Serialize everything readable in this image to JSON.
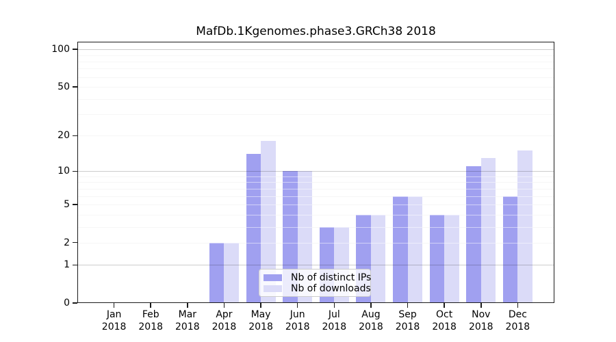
{
  "chart_data": {
    "type": "bar",
    "title": "MafDb.1Kgenomes.phase3.GRCh38 2018",
    "categories": [
      "Jan",
      "Feb",
      "Mar",
      "Apr",
      "May",
      "Jun",
      "Jul",
      "Aug",
      "Sep",
      "Oct",
      "Nov",
      "Dec"
    ],
    "year_label": "2018",
    "series": [
      {
        "key": "distinct-ips",
        "name": "Nb of distinct IPs",
        "color": "#a0a0f0",
        "values": [
          0,
          0,
          0,
          2,
          14,
          10,
          3,
          4,
          6,
          4,
          11,
          6
        ]
      },
      {
        "key": "downloads",
        "name": "Nb of downloads",
        "color": "#dbdbf8",
        "values": [
          0,
          0,
          0,
          2,
          18,
          10,
          3,
          4,
          6,
          4,
          13,
          15
        ]
      }
    ],
    "xlabel": "",
    "ylabel": "",
    "scale": "log1p",
    "ylim": [
      0,
      115
    ],
    "y_tick_values": [
      0,
      1,
      2,
      5,
      10,
      20,
      50,
      100
    ],
    "y_tick_labels": [
      "0",
      "1",
      "2",
      "5",
      "10",
      "20",
      "50",
      "100"
    ],
    "grid": true,
    "grid_minor_values": [
      2,
      3,
      4,
      5,
      6,
      7,
      8,
      9,
      20,
      30,
      40,
      50,
      60,
      70,
      80,
      90
    ],
    "grid_major_values": [
      1,
      10,
      100
    ],
    "legend_position": "inside lower-center",
    "background_color": "#ffffff"
  }
}
